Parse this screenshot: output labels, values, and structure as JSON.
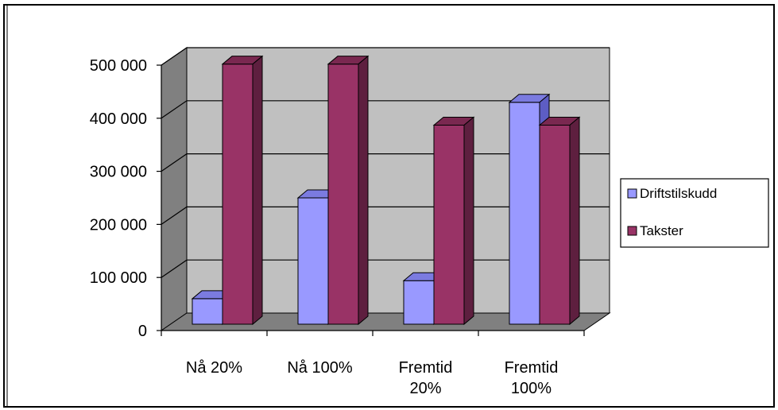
{
  "chart_data": {
    "type": "bar",
    "style": "3d-clustered-column",
    "categories": [
      "Nå 20%",
      "Nå 100%",
      "Fremtid 20%",
      "Fremtid 100%"
    ],
    "category_lines": [
      [
        "Nå 20%"
      ],
      [
        "Nå 100%"
      ],
      [
        "Fremtid",
        "20%"
      ],
      [
        "Fremtid",
        "100%"
      ]
    ],
    "series": [
      {
        "name": "Driftstilskudd",
        "values": [
          48000,
          238000,
          82000,
          418000
        ],
        "color": "#9999FF",
        "side_color": "#5D5DC4",
        "top_color": "#7B7BE0"
      },
      {
        "name": "Takster",
        "values": [
          490000,
          490000,
          375000,
          375000
        ],
        "color": "#993366",
        "side_color": "#5E1F3F",
        "top_color": "#7A2850"
      }
    ],
    "ylim": [
      0,
      500000
    ],
    "yticks": [
      0,
      100000,
      200000,
      300000,
      400000,
      500000
    ],
    "ytick_labels": [
      "0",
      "100 000",
      "200 000",
      "300 000",
      "400 000",
      "500 000"
    ],
    "grid": true,
    "legend": "right",
    "title": "",
    "xlabel": "",
    "ylabel": "",
    "colors": {
      "wall": "#C0C0C0",
      "side_wall": "#808080",
      "floor": "#808080",
      "gridline": "#000000"
    }
  }
}
